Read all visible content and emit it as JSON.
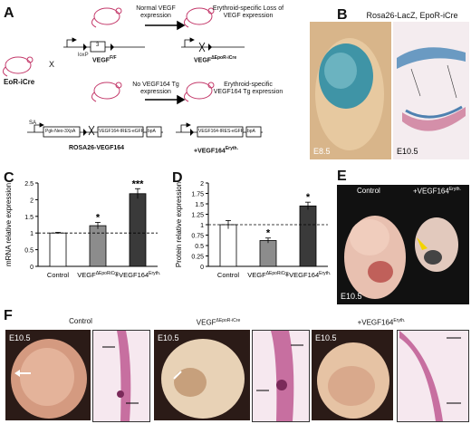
{
  "panels": {
    "A": "A",
    "B": "B",
    "C": "C",
    "D": "D",
    "E": "E",
    "F": "F"
  },
  "panelA": {
    "epor_icre_label": "EoR-iCre",
    "cross_symbol": "X",
    "top_left_caption": "Normal VEGF expression",
    "top_left_geno_base": "VEGF",
    "top_left_geno_sup": "F/F",
    "top_right_caption": "Erythroid-specific Loss of VEGF expression",
    "top_right_geno_base": "VEGF",
    "top_right_geno_sup": "ΔEpoR-iCre",
    "bottom_left_caption": "No VEGF164 Tg expression",
    "bottom_left_geno": "ROSA26-VEGF164",
    "bottom_right_caption": "Erythroid-specific VEGF164 Tg expression",
    "bottom_right_geno_base": "+VEGF164",
    "bottom_right_geno_sup": "Eryth.",
    "exon_label": "3",
    "loxp_label": "loxP",
    "sa_label": "SA",
    "construct_left": "Pgk-Neo-3XpA",
    "construct_mid": "VEGF164-IRES-eGFP",
    "construct_bpa": "bpA"
  },
  "panelB": {
    "title": "Rosa26-LacZ, EpoR-iCre",
    "label_left": "E8.5",
    "label_right": "E10.5"
  },
  "chart_data": [
    {
      "type": "bar",
      "panel": "C",
      "categories": [
        "Control",
        "VEGFΔEpoRiCre",
        "+VEGF164Eryth."
      ],
      "category_base": [
        "Control",
        "VEGF",
        "+VEGF164"
      ],
      "category_sup": [
        "",
        "ΔEpoRiCre",
        "Eryth."
      ],
      "values": [
        1.0,
        1.22,
        2.18
      ],
      "errors": [
        0.02,
        0.1,
        0.15
      ],
      "significance": [
        "",
        "*",
        "***"
      ],
      "bar_colors": [
        "#ffffff",
        "#8c8c8c",
        "#3a3a3a"
      ],
      "ylabel": "mRNA relative expression",
      "ylim": [
        0,
        2.5
      ],
      "yticks": [
        0,
        0.5,
        1,
        1.5,
        2,
        2.5
      ],
      "ytick_labels": [
        "0",
        "0.5",
        "1",
        "1.5",
        "2",
        "2.5"
      ],
      "reference_line": 1
    },
    {
      "type": "bar",
      "panel": "D",
      "categories": [
        "Control",
        "VEGFΔEpoRiCre",
        "+VEGF164Eryth."
      ],
      "category_base": [
        "Control",
        "VEGF",
        "+VEGF164"
      ],
      "category_sup": [
        "",
        "ΔEpoRiCre",
        "Eryth."
      ],
      "values": [
        1.0,
        0.62,
        1.45
      ],
      "errors": [
        0.1,
        0.06,
        0.09
      ],
      "significance": [
        "",
        "*",
        "*"
      ],
      "bar_colors": [
        "#ffffff",
        "#8c8c8c",
        "#3a3a3a"
      ],
      "ylabel": "Protein relative expression",
      "ylim": [
        0,
        2
      ],
      "yticks": [
        0,
        0.25,
        0.5,
        0.75,
        1,
        1.25,
        1.5,
        1.75,
        2
      ],
      "ytick_labels": [
        "0",
        "0.25",
        "0.5",
        "0.75",
        "1",
        "1.25",
        "1.5",
        "1.75",
        "2"
      ],
      "reference_line": 1
    }
  ],
  "panelE": {
    "label_control": "Control",
    "label_mut_base": "+VEGF164",
    "label_mut_sup": "Eryth.",
    "stage": "E10.5"
  },
  "panelF": {
    "title_control": "Control",
    "title_mid_base": "VEGF",
    "title_mid_sup": "ΔEpoR-iCre",
    "title_right_base": "+VEGF164",
    "title_right_sup": "Eryth.",
    "stage_1": "E10.5",
    "stage_2": "E10.5",
    "stage_3": "E10.5"
  }
}
